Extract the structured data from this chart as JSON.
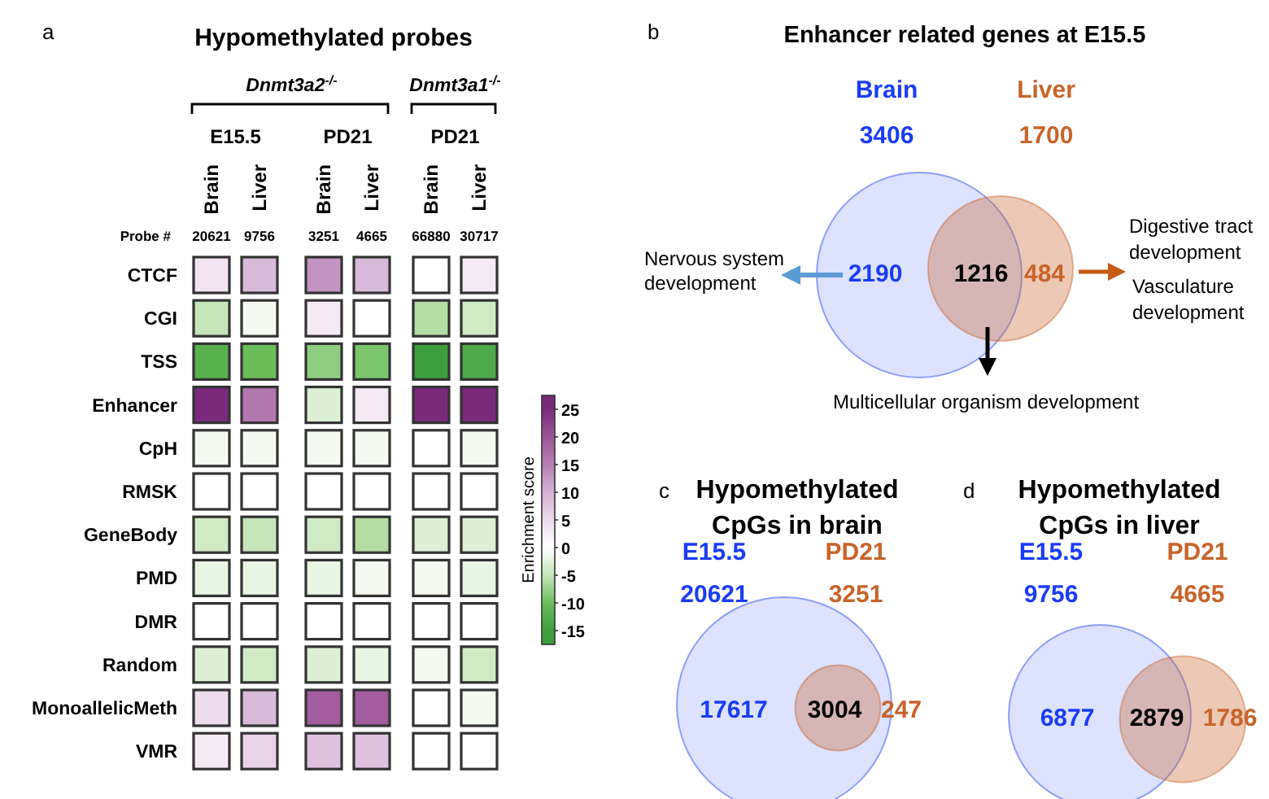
{
  "chart_data": [
    {
      "type": "heatmap",
      "title": "Hypomethylated probes",
      "clabel": "Enrichment score",
      "categories": [
        "Brain",
        "Liver",
        "Brain",
        "Liver",
        "Brain",
        "Liver"
      ],
      "y_categories": [
        "CTCF",
        "CGI",
        "TSS",
        "Enhancer",
        "CpH",
        "RMSK",
        "GeneBody",
        "PMD",
        "DMR",
        "Random",
        "MonoallelicMeth",
        "VMR"
      ],
      "cells": [
        [
          4,
          9,
          13,
          9,
          0,
          3
        ],
        [
          -5,
          -1,
          3,
          0,
          -6,
          -4
        ],
        [
          -12,
          -10,
          -8,
          -9,
          -15,
          -13
        ],
        [
          27,
          16,
          -3,
          3,
          25,
          27
        ],
        [
          -1,
          -1,
          -1,
          -1,
          0,
          -1
        ],
        [
          0,
          0,
          0,
          0,
          0,
          0
        ],
        [
          -4,
          -5,
          -4,
          -6,
          -3,
          -3
        ],
        [
          -2,
          -2,
          -2,
          -1,
          -1,
          -2
        ],
        [
          0,
          0,
          0,
          0,
          0,
          0
        ],
        [
          -3,
          -4,
          -3,
          -2,
          -1,
          -4
        ],
        [
          5,
          9,
          19,
          19,
          0,
          -1
        ],
        [
          3,
          6,
          8,
          8,
          0,
          0
        ]
      ],
      "clim": [
        -17.5,
        27.5
      ],
      "cticks": [
        -15,
        -10,
        -5,
        0,
        5,
        10,
        15,
        20,
        25
      ],
      "annotations": [
        "a",
        "Dnmt3a2$^{-/-}$",
        "Dnmt3a1$^{-/-}$",
        "E15.5",
        "PD21",
        "PD21",
        "Probe #",
        "20621",
        "9756",
        "3251",
        "4665",
        "66880",
        "30717"
      ]
    },
    {
      "type": "other",
      "title": "Enhancer related genes at E15.5",
      "categories": [
        "Brain",
        "Liver"
      ],
      "values": [
        3406,
        1700
      ],
      "data_labels": true,
      "colors": [
        "#1a3cf5",
        "#c8642a"
      ],
      "annotations": [
        "b",
        "2190",
        "1216",
        "484",
        "Nervous system development",
        "Digestive tract development",
        "Vasculature development",
        "Multicellular organism development"
      ]
    },
    {
      "type": "other",
      "title": "Hypomethylated CpGs in brain",
      "categories": [
        "E15.5",
        "PD21"
      ],
      "values": [
        20621,
        3251
      ],
      "data_labels": true,
      "colors": [
        "#1a3cf5",
        "#c8642a"
      ],
      "annotations": [
        "c",
        "17617",
        "3004",
        "247"
      ]
    },
    {
      "type": "other",
      "title": "Hypomethylated CpGs in liver",
      "categories": [
        "E15.5",
        "PD21"
      ],
      "values": [
        9756,
        4665
      ],
      "data_labels": true,
      "colors": [
        "#1a3cf5",
        "#c8642a"
      ],
      "annotations": [
        "d",
        "6877",
        "2879",
        "1786"
      ]
    }
  ]
}
